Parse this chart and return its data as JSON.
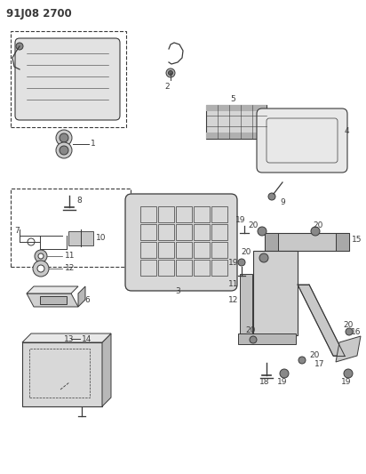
{
  "title": "91J08 2700",
  "bg_color": "#ffffff",
  "line_color": "#3a3a3a",
  "title_fontsize": 8.5,
  "label_fontsize": 6.5,
  "fig_width": 4.12,
  "fig_height": 5.33,
  "dpi": 100
}
